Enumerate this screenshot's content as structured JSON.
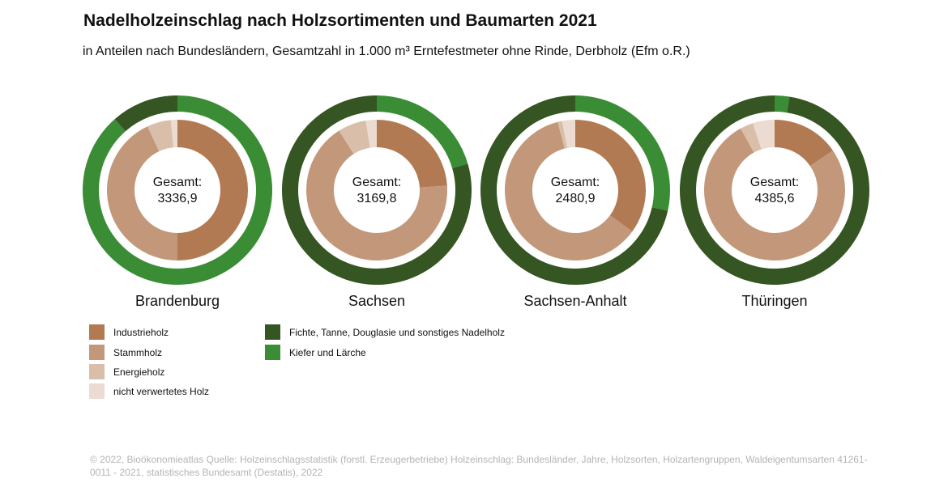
{
  "title": "Nadelholzeinschlag nach Holzsortimenten und Baumarten 2021",
  "subtitle": "in Anteilen nach Bundesländern, Gesamtzahl in 1.000 m³ Erntefestmeter ohne Rinde, Derbholz (Efm o.R.)",
  "center_label": "Gesamt:",
  "colors": {
    "Industrieholz": "#b27a52",
    "Stammholz": "#c3987a",
    "Energieholz": "#d9bea9",
    "nicht verwertetes Holz": "#ebdbd0",
    "Fichte, Tanne, Douglasie und sonstiges Nadelholz": "#355522",
    "Kiefer und Lärche": "#3a8c35"
  },
  "legend": {
    "sortimente": [
      "Industrieholz",
      "Stammholz",
      "Energieholz",
      "nicht verwertetes Holz"
    ],
    "baumarten": [
      "Fichte, Tanne, Douglasie und sonstiges Nadelholz",
      "Kiefer und Lärche"
    ]
  },
  "chart_data": {
    "type": "pie",
    "variant": "nested-donut",
    "inner_ring": "Holzsortimente (share of Gesamt)",
    "outer_ring": "Baumarten (share of Gesamt)",
    "charts": [
      {
        "name": "Brandenburg",
        "total": "3336,9",
        "inner": [
          {
            "label": "Industrieholz",
            "value": 0.5
          },
          {
            "label": "Stammholz",
            "value": 0.43
          },
          {
            "label": "Energieholz",
            "value": 0.055
          },
          {
            "label": "nicht verwertetes Holz",
            "value": 0.015
          }
        ],
        "outer": [
          {
            "label": "Kiefer und Lärche",
            "value": 0.885
          },
          {
            "label": "Fichte, Tanne, Douglasie und sonstiges Nadelholz",
            "value": 0.115
          }
        ]
      },
      {
        "name": "Sachsen",
        "total": "3169,8",
        "inner": [
          {
            "label": "Industrieholz",
            "value": 0.24
          },
          {
            "label": "Stammholz",
            "value": 0.67
          },
          {
            "label": "Energieholz",
            "value": 0.065
          },
          {
            "label": "nicht verwertetes Holz",
            "value": 0.025
          }
        ],
        "outer": [
          {
            "label": "Kiefer und Lärche",
            "value": 0.205
          },
          {
            "label": "Fichte, Tanne, Douglasie und sonstiges Nadelholz",
            "value": 0.795
          }
        ]
      },
      {
        "name": "Sachsen-Anhalt",
        "total": "2480,9",
        "inner": [
          {
            "label": "Industrieholz",
            "value": 0.35
          },
          {
            "label": "Stammholz",
            "value": 0.61
          },
          {
            "label": "Energieholz",
            "value": 0.01
          },
          {
            "label": "nicht verwertetes Holz",
            "value": 0.03
          }
        ],
        "outer": [
          {
            "label": "Kiefer und Lärche",
            "value": 0.285
          },
          {
            "label": "Fichte, Tanne, Douglasie und sonstiges Nadelholz",
            "value": 0.715
          }
        ]
      },
      {
        "name": "Thüringen",
        "total": "4385,6",
        "inner": [
          {
            "label": "Industrieholz",
            "value": 0.155
          },
          {
            "label": "Stammholz",
            "value": 0.765
          },
          {
            "label": "Energieholz",
            "value": 0.03
          },
          {
            "label": "nicht verwertetes Holz",
            "value": 0.05
          }
        ],
        "outer": [
          {
            "label": "Kiefer und Lärche",
            "value": 0.025
          },
          {
            "label": "Fichte, Tanne, Douglasie und sonstiges Nadelholz",
            "value": 0.975
          }
        ]
      }
    ]
  },
  "footer": "© 2022, Bioökonomieatlas Quelle: Holzeinschlagsstatistik (forstl. Erzeugerbetriebe) Holzeinschlag: Bundesländer, Jahre, Holzsorten, Holzartengruppen, Waldeigentumsarten 41261-0011 - 2021, statistisches Bundesamt (Destatis), 2022"
}
